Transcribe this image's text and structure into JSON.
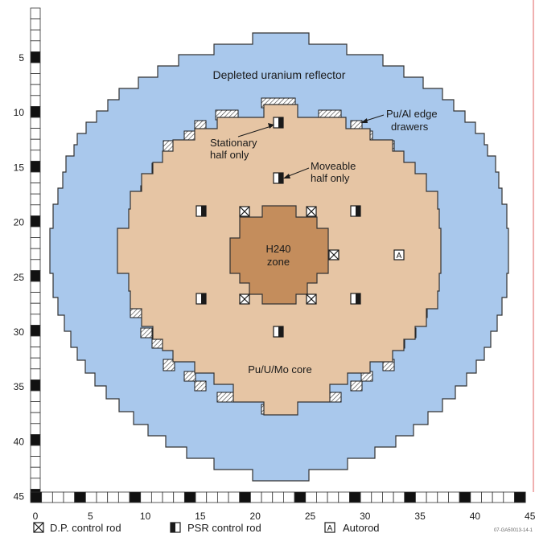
{
  "diagram": {
    "regions": {
      "reflector": {
        "label": "Depleted uranium reflector",
        "color": "#a9c8ec"
      },
      "core": {
        "label": "Pu/U/Mo core",
        "color": "#e6c5a4"
      },
      "zone": {
        "label_line1": "H240",
        "label_line2": "zone",
        "color": "#c48d5c"
      }
    },
    "annotations": {
      "edge_drawers": {
        "line1": "Pu/Al edge",
        "line2": "drawers"
      },
      "stationary": {
        "line1": "Stationary",
        "line2": "half only"
      },
      "moveable": {
        "line1": "Moveable",
        "line2": "half only"
      }
    },
    "y_ticks": [
      "5",
      "10",
      "15",
      "20",
      "25",
      "30",
      "35",
      "40",
      "45"
    ],
    "x_ticks": [
      "0",
      "5",
      "10",
      "15",
      "20",
      "25",
      "30",
      "35",
      "40",
      "45"
    ],
    "legend": {
      "dp": "D.P. control rod",
      "psr": "PSR control rod",
      "auto_symbol": "A",
      "auto": "Autorod"
    },
    "autorod_symbol": "A",
    "figure_id": "07-GA50013-14-1",
    "outline_color": "#1a1a1a"
  }
}
